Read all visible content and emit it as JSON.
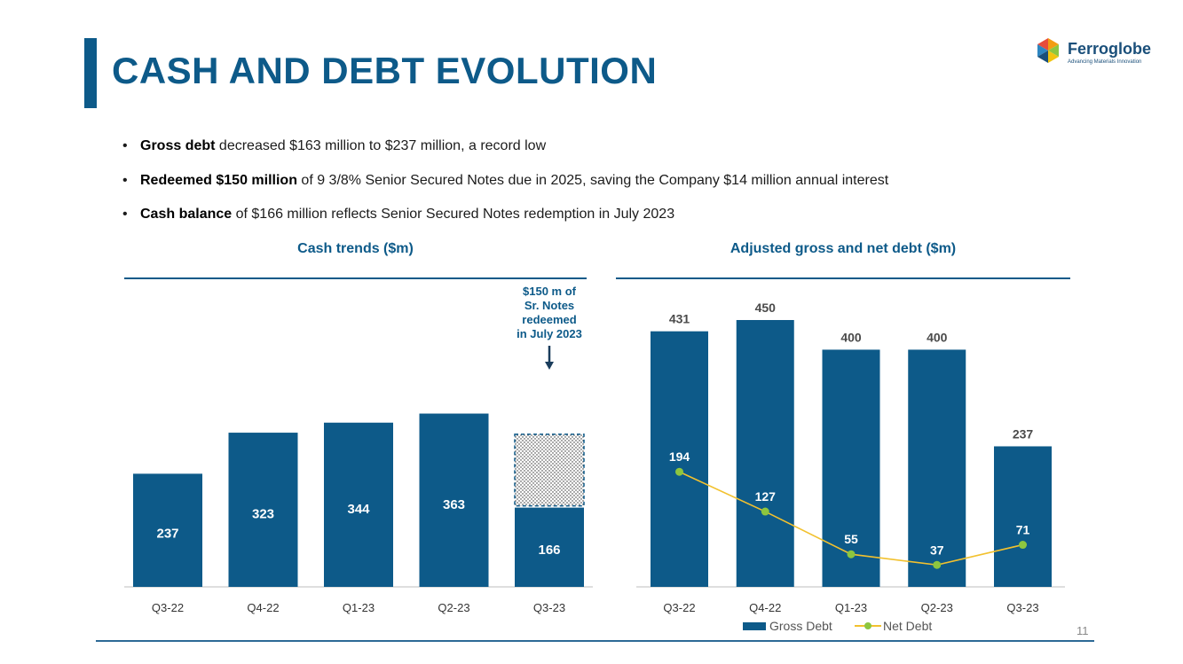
{
  "header": {
    "title": "CASH AND DEBT EVOLUTION",
    "logo_name": "Ferroglobe",
    "logo_tagline": "Advancing Materials Innovation",
    "brand_color": "#0d5a89"
  },
  "bullets": [
    {
      "bold": "Gross debt",
      "text": " decreased $163 million to $237 million, a record low"
    },
    {
      "bold": "Redeemed $150 million",
      "text": " of 9 3/8% Senior Secured Notes due in 2025, saving the Company $14 million annual interest"
    },
    {
      "bold": "Cash balance",
      "text": " of $166 million reflects Senior Secured Notes redemption in July 2023"
    }
  ],
  "chart_data": [
    {
      "type": "bar",
      "title": "Cash trends ($m)",
      "categories": [
        "Q3-22",
        "Q4-22",
        "Q1-23",
        "Q2-23",
        "Q3-23"
      ],
      "values": [
        237,
        323,
        344,
        363,
        166
      ],
      "redeemed_segment": {
        "category": "Q3-23",
        "value": 150
      },
      "annotation": [
        "$150 m of",
        "Sr. Notes",
        "redeemed",
        "in July 2023"
      ],
      "color": "#0d5a89",
      "ylim": [
        0,
        400
      ]
    },
    {
      "type": "bar+line",
      "title": "Adjusted gross and net debt ($m)",
      "categories": [
        "Q3-22",
        "Q4-22",
        "Q1-23",
        "Q2-23",
        "Q3-23"
      ],
      "series": [
        {
          "name": "Gross Debt",
          "type": "bar",
          "values": [
            431,
            450,
            400,
            400,
            237
          ],
          "color": "#0d5a89"
        },
        {
          "name": "Net Debt",
          "type": "line",
          "values": [
            194,
            127,
            55,
            37,
            71
          ],
          "color": "#8dc63f"
        }
      ],
      "legend_position": "bottom",
      "ylim": [
        0,
        450
      ]
    }
  ],
  "footer": {
    "page_number": "11"
  }
}
